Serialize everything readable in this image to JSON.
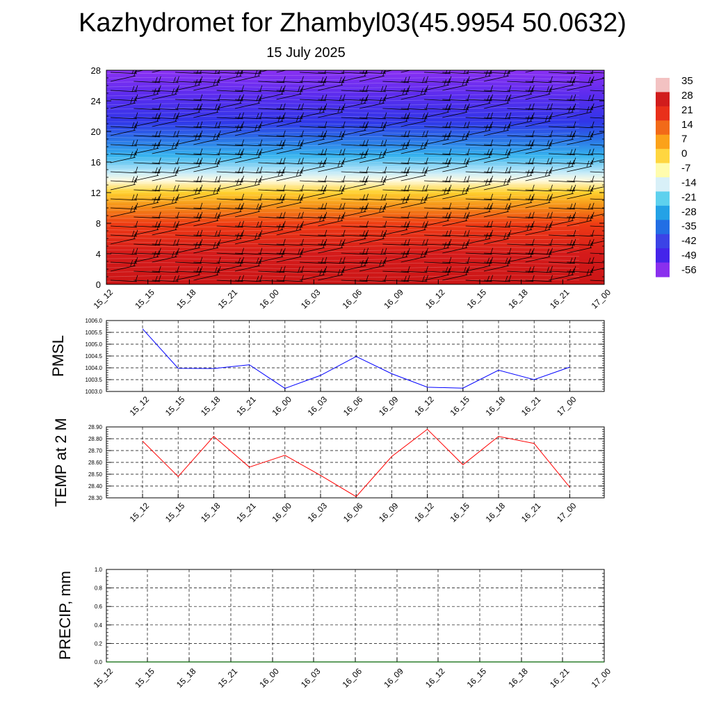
{
  "header": {
    "title": "Kazhydromet for Zhambyl03(45.9954 50.0632)",
    "subtitle": "15 July 2025"
  },
  "chart_data": [
    {
      "id": "cross-section",
      "type": "heatmap",
      "title": "",
      "xlabel": "",
      "ylabel": "",
      "x_ticks": [
        "15_12",
        "15_15",
        "15_18",
        "15_21",
        "16_00",
        "16_03",
        "16_06",
        "16_09",
        "16_12",
        "16_15",
        "16_18",
        "16_21",
        "17_00"
      ],
      "y_ticks": [
        "0",
        "4",
        "8",
        "12",
        "16",
        "20",
        "24",
        "28"
      ],
      "ylim": [
        0,
        28
      ],
      "field": "temperature",
      "temperature_profile": [
        {
          "level": 0,
          "value": 30
        },
        {
          "level": 4,
          "value": 28
        },
        {
          "level": 8,
          "value": 22
        },
        {
          "level": 12,
          "value": 5
        },
        {
          "level": 13.6,
          "value": -10
        },
        {
          "level": 16,
          "value": -25
        },
        {
          "level": 20,
          "value": -42
        },
        {
          "level": 24,
          "value": -50
        },
        {
          "level": 28,
          "value": -60
        }
      ],
      "wind_barbs": "present",
      "colorbar": {
        "labels": [
          "35",
          "28",
          "21",
          "14",
          "7",
          "0",
          "-7",
          "-14",
          "-21",
          "-28",
          "-35",
          "-42",
          "-49",
          "-56"
        ],
        "colors": [
          "#f3c2c2",
          "#d11c1c",
          "#e9301a",
          "#f26a18",
          "#fba21a",
          "#ffd640",
          "#fffcae",
          "#d8f0f8",
          "#5ed1ee",
          "#24a2e6",
          "#226ee4",
          "#3b43e6",
          "#4524ea",
          "#8a2fee"
        ]
      }
    },
    {
      "id": "pmsl",
      "type": "line",
      "ylabel": "PMSL",
      "ylim": [
        1003.0,
        1006.0
      ],
      "y_ticks": [
        "1003.0",
        "1003.5",
        "1004.0",
        "1004.5",
        "1005.0",
        "1005.5",
        "1006.0"
      ],
      "categories": [
        "15_12",
        "15_15",
        "15_18",
        "15_21",
        "16_00",
        "16_03",
        "16_06",
        "16_09",
        "16_12",
        "16_15",
        "16_18",
        "16_21",
        "17_00"
      ],
      "values": [
        1005.65,
        1003.98,
        1003.97,
        1004.13,
        1003.13,
        1003.68,
        1004.48,
        1003.75,
        1003.18,
        1003.14,
        1003.9,
        1003.5,
        1004.03
      ],
      "color": "#0000ff"
    },
    {
      "id": "temp2m",
      "type": "line",
      "ylabel": "TEMP at 2 M",
      "ylim": [
        28.3,
        28.9
      ],
      "y_ticks": [
        "28.30",
        "28.40",
        "28.50",
        "28.60",
        "28.70",
        "28.80",
        "28.90"
      ],
      "categories": [
        "15_12",
        "15_15",
        "15_18",
        "15_21",
        "16_00",
        "16_03",
        "16_06",
        "16_09",
        "16_12",
        "16_15",
        "16_18",
        "16_21",
        "17_00"
      ],
      "values": [
        28.78,
        28.48,
        28.82,
        28.56,
        28.66,
        28.49,
        28.31,
        28.65,
        28.88,
        28.58,
        28.82,
        28.76,
        28.39
      ],
      "color": "#ff0000"
    },
    {
      "id": "precip",
      "type": "line",
      "ylabel": "PRECIP, mm",
      "ylim": [
        0,
        1.0
      ],
      "y_ticks": [
        "0.0",
        "0.2",
        "0.4",
        "0.6",
        "0.8",
        "1.0"
      ],
      "categories": [
        "15_12",
        "15_15",
        "15_18",
        "15_21",
        "16_00",
        "16_03",
        "16_06",
        "16_09",
        "16_12",
        "16_15",
        "16_18",
        "16_21",
        "17_00"
      ],
      "values": [
        0,
        0,
        0,
        0,
        0,
        0,
        0,
        0,
        0,
        0,
        0,
        0,
        0
      ],
      "color": "#006400"
    }
  ]
}
